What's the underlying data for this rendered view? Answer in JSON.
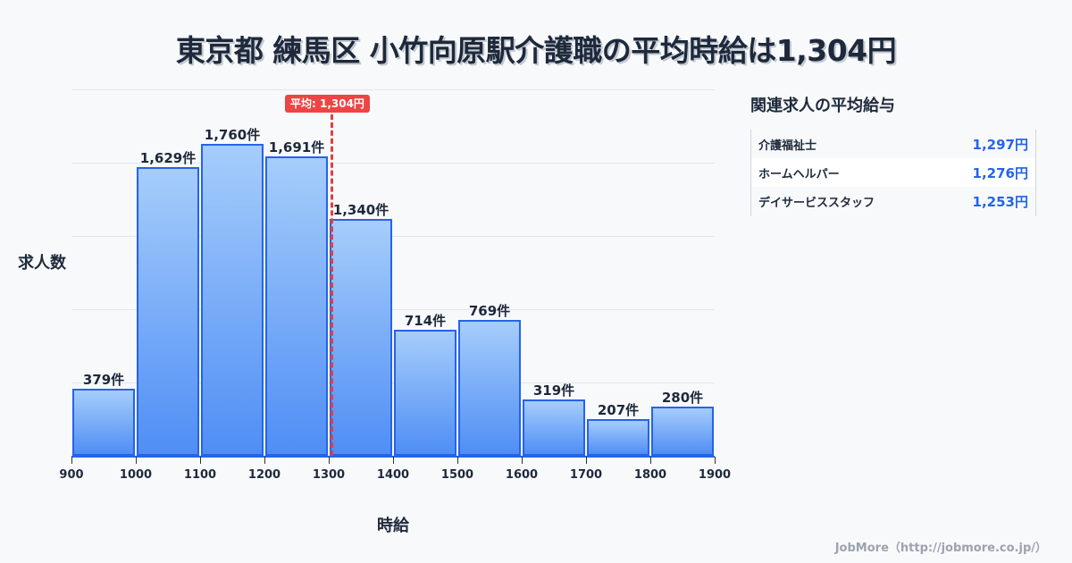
{
  "title": "東京都 練馬区 小竹向原駅介護職の平均時給は1,304円",
  "chart_data": {
    "type": "bar",
    "title": "東京都 練馬区 小竹向原駅介護職の平均時給は1,304円",
    "xlabel": "時給",
    "ylabel": "求人数",
    "categories": [
      "900-1000",
      "1000-1100",
      "1100-1200",
      "1200-1300",
      "1300-1400",
      "1400-1500",
      "1500-1600",
      "1600-1700",
      "1700-1800",
      "1800-1900"
    ],
    "x_ticks": [
      "900",
      "1000",
      "1100",
      "1200",
      "1300",
      "1400",
      "1500",
      "1600",
      "1700",
      "1800",
      "1900"
    ],
    "values": [
      379,
      1629,
      1760,
      1691,
      1340,
      714,
      769,
      319,
      207,
      280
    ],
    "value_labels": [
      "379件",
      "1,629件",
      "1,760件",
      "1,691件",
      "1,340件",
      "714件",
      "769件",
      "319件",
      "207件",
      "280件"
    ],
    "xlim": [
      900,
      1900
    ],
    "ylim": [
      0,
      2070
    ],
    "grid": true,
    "mean": {
      "value": 1304,
      "label": "平均: 1,304円",
      "color": "#ef4444"
    },
    "bar_color": "#2563eb"
  },
  "sidebar": {
    "title": "関連求人の平均給与",
    "items": [
      {
        "name": "介護福祉士",
        "value": "1,297円"
      },
      {
        "name": "ホームヘルパー",
        "value": "1,276円"
      },
      {
        "name": "デイサービススタッフ",
        "value": "1,253円"
      }
    ]
  },
  "footer": "JobMore（http://jobmore.co.jp/）"
}
